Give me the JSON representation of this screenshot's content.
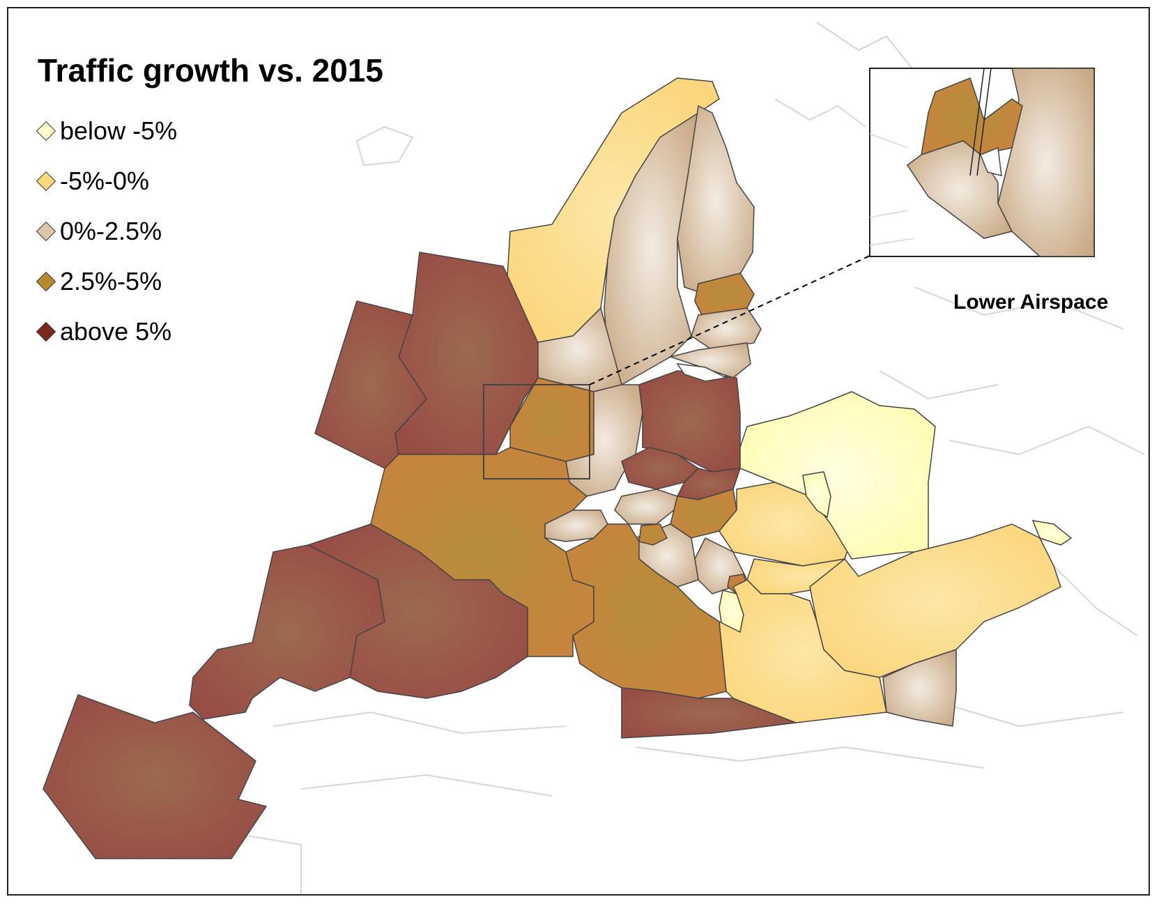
{
  "title": "Traffic growth vs. 2015",
  "legend": [
    {
      "label": "below -5%",
      "color": "#ffffcc"
    },
    {
      "label": "-5%-0%",
      "color": "#fdd97c"
    },
    {
      "label": "0%-2.5%",
      "color": "#dcc6a9"
    },
    {
      "label": "2.5%-5%",
      "color": "#b88a2e"
    },
    {
      "label": "above 5%",
      "color": "#7b2a18"
    }
  ],
  "inset": {
    "label": "Lower Airspace"
  },
  "region_colors": {
    "below": "#ffffc4",
    "neg": "#fddd8c",
    "low": "#dcc8ae",
    "mid": "#bf8f3e",
    "high": "#9a5747"
  }
}
